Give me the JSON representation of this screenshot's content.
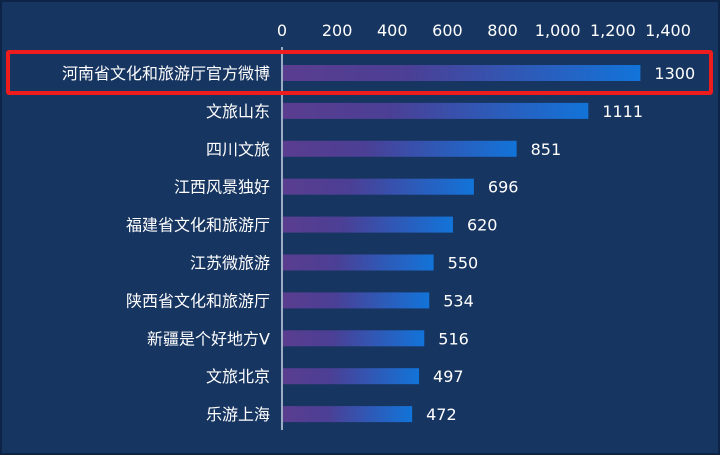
{
  "chart_data": {
    "type": "bar",
    "orientation": "horizontal",
    "categories": [
      "河南省文化和旅游厅官方微博",
      "文旅山东",
      "四川文旅",
      "江西风景独好",
      "福建省文化和旅游厅",
      "江苏微旅游",
      "陕西省文化和旅游厅",
      "新疆是个好地方V",
      "文旅北京",
      "乐游上海"
    ],
    "values": [
      1300,
      1111,
      851,
      696,
      620,
      550,
      534,
      516,
      497,
      472
    ],
    "data_labels": [
      "1300",
      "1111",
      "851",
      "696",
      "620",
      "550",
      "534",
      "516",
      "497",
      "472"
    ],
    "x_ticks": [
      "0",
      "200",
      "400",
      "600",
      "800",
      "1,000",
      "1,200",
      "1,400"
    ],
    "x_tick_values": [
      0,
      200,
      400,
      600,
      800,
      1000,
      1200,
      1400
    ],
    "xlim": [
      0,
      1400
    ],
    "axis_position": "top",
    "grid": false,
    "legend": "none",
    "highlighted_category": "河南省文化和旅游厅官方微博",
    "colors": {
      "background": "#173561",
      "bar_start": "#5a3d8f",
      "bar_end": "#1274d9",
      "highlight_border": "#ee1c1c",
      "text": "#ffffff"
    }
  }
}
